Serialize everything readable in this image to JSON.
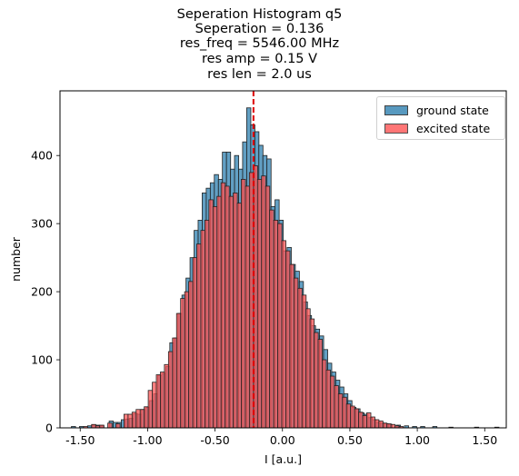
{
  "title_lines": [
    "Seperation Histogram q5",
    "Seperation = 0.136",
    "res_freq = 5546.00 MHz",
    "res amp = 0.15 V",
    "res len = 2.0 us"
  ],
  "legend": {
    "ground_label": "ground state",
    "excited_label": "excited state"
  },
  "colors": {
    "ground": "#3b88b5",
    "excited": "#ff5555",
    "overlap": "#b83240",
    "edge": "#222222",
    "threshold_line": "#dd0000"
  },
  "chart_data": {
    "type": "bar",
    "title": "Seperation Histogram q5",
    "subtitle": [
      "Seperation = 0.136",
      "res_freq = 5546.00 MHz",
      "res amp = 0.15 V",
      "res len = 2.0 us"
    ],
    "xlabel": "I [a.u.]",
    "ylabel": "number",
    "xlim": [
      -1.65,
      1.66
    ],
    "ylim": [
      0,
      495
    ],
    "x_ticks": [
      -1.5,
      -1.0,
      -0.5,
      0.0,
      0.5,
      1.0,
      1.5
    ],
    "x_tick_labels": [
      "-1.50",
      "-1.00",
      "-0.50",
      "0.00",
      "0.50",
      "1.00",
      "1.50"
    ],
    "y_ticks": [
      0,
      100,
      200,
      300,
      400
    ],
    "y_tick_labels": [
      "0",
      "100",
      "200",
      "300",
      "400"
    ],
    "threshold": -0.215,
    "legend_position": "top-right",
    "grid": false,
    "bin_width": 0.031,
    "series": [
      {
        "name": "ground state",
        "bins": [
          [
            -1.55,
            2
          ],
          [
            -1.49,
            2
          ],
          [
            -1.43,
            3
          ],
          [
            -1.4,
            4
          ],
          [
            -1.37,
            4
          ],
          [
            -1.34,
            3
          ],
          [
            -1.27,
            10
          ],
          [
            -1.24,
            8
          ],
          [
            -1.21,
            8
          ],
          [
            -1.18,
            12
          ],
          [
            -1.15,
            13
          ],
          [
            -1.12,
            14
          ],
          [
            -1.09,
            21
          ],
          [
            -1.06,
            20
          ],
          [
            -1.03,
            27
          ],
          [
            -1.0,
            30
          ],
          [
            -0.97,
            40
          ],
          [
            -0.94,
            50
          ],
          [
            -0.91,
            77
          ],
          [
            -0.88,
            80
          ],
          [
            -0.85,
            90
          ],
          [
            -0.82,
            125
          ],
          [
            -0.79,
            132
          ],
          [
            -0.76,
            168
          ],
          [
            -0.73,
            195
          ],
          [
            -0.7,
            220
          ],
          [
            -0.67,
            250
          ],
          [
            -0.64,
            290
          ],
          [
            -0.61,
            305
          ],
          [
            -0.58,
            345
          ],
          [
            -0.55,
            352
          ],
          [
            -0.52,
            360
          ],
          [
            -0.49,
            372
          ],
          [
            -0.46,
            365
          ],
          [
            -0.43,
            405
          ],
          [
            -0.4,
            405
          ],
          [
            -0.37,
            380
          ],
          [
            -0.34,
            400
          ],
          [
            -0.31,
            380
          ],
          [
            -0.28,
            420
          ],
          [
            -0.25,
            470
          ],
          [
            -0.22,
            445
          ],
          [
            -0.19,
            435
          ],
          [
            -0.16,
            415
          ],
          [
            -0.13,
            400
          ],
          [
            -0.1,
            395
          ],
          [
            -0.07,
            325
          ],
          [
            -0.04,
            335
          ],
          [
            -0.01,
            305
          ],
          [
            0.02,
            260
          ],
          [
            0.05,
            265
          ],
          [
            0.08,
            240
          ],
          [
            0.11,
            230
          ],
          [
            0.14,
            215
          ],
          [
            0.17,
            185
          ],
          [
            0.2,
            165
          ],
          [
            0.23,
            150
          ],
          [
            0.26,
            145
          ],
          [
            0.29,
            135
          ],
          [
            0.32,
            115
          ],
          [
            0.35,
            95
          ],
          [
            0.38,
            82
          ],
          [
            0.41,
            70
          ],
          [
            0.44,
            60
          ],
          [
            0.47,
            50
          ],
          [
            0.5,
            40
          ],
          [
            0.53,
            30
          ],
          [
            0.56,
            28
          ],
          [
            0.59,
            22
          ],
          [
            0.62,
            20
          ],
          [
            0.65,
            15
          ],
          [
            0.68,
            12
          ],
          [
            0.71,
            8
          ],
          [
            0.74,
            7
          ],
          [
            0.77,
            6
          ],
          [
            0.8,
            5
          ],
          [
            0.86,
            4
          ],
          [
            0.92,
            3
          ],
          [
            0.98,
            2
          ],
          [
            1.04,
            2
          ],
          [
            1.13,
            2
          ],
          [
            1.25,
            1
          ],
          [
            1.44,
            1
          ],
          [
            1.59,
            1
          ]
        ]
      },
      {
        "name": "excited state",
        "bins": [
          [
            -1.46,
            2
          ],
          [
            -1.4,
            5
          ],
          [
            -1.37,
            3
          ],
          [
            -1.34,
            4
          ],
          [
            -1.28,
            7
          ],
          [
            -1.22,
            6
          ],
          [
            -1.16,
            20
          ],
          [
            -1.13,
            20
          ],
          [
            -1.1,
            23
          ],
          [
            -1.07,
            27
          ],
          [
            -1.04,
            27
          ],
          [
            -1.01,
            31
          ],
          [
            -0.98,
            55
          ],
          [
            -0.95,
            67
          ],
          [
            -0.92,
            78
          ],
          [
            -0.89,
            82
          ],
          [
            -0.86,
            93
          ],
          [
            -0.83,
            112
          ],
          [
            -0.8,
            132
          ],
          [
            -0.77,
            168
          ],
          [
            -0.74,
            190
          ],
          [
            -0.71,
            200
          ],
          [
            -0.68,
            215
          ],
          [
            -0.65,
            250
          ],
          [
            -0.62,
            270
          ],
          [
            -0.59,
            290
          ],
          [
            -0.56,
            305
          ],
          [
            -0.53,
            335
          ],
          [
            -0.5,
            325
          ],
          [
            -0.47,
            340
          ],
          [
            -0.44,
            360
          ],
          [
            -0.41,
            355
          ],
          [
            -0.38,
            340
          ],
          [
            -0.35,
            345
          ],
          [
            -0.32,
            330
          ],
          [
            -0.29,
            365
          ],
          [
            -0.26,
            355
          ],
          [
            -0.23,
            375
          ],
          [
            -0.2,
            385
          ],
          [
            -0.17,
            365
          ],
          [
            -0.14,
            370
          ],
          [
            -0.11,
            355
          ],
          [
            -0.08,
            320
          ],
          [
            -0.05,
            305
          ],
          [
            -0.02,
            300
          ],
          [
            0.01,
            275
          ],
          [
            0.04,
            260
          ],
          [
            0.07,
            240
          ],
          [
            0.1,
            220
          ],
          [
            0.13,
            205
          ],
          [
            0.16,
            195
          ],
          [
            0.19,
            175
          ],
          [
            0.22,
            160
          ],
          [
            0.25,
            140
          ],
          [
            0.28,
            130
          ],
          [
            0.31,
            100
          ],
          [
            0.34,
            85
          ],
          [
            0.37,
            76
          ],
          [
            0.4,
            62
          ],
          [
            0.43,
            50
          ],
          [
            0.46,
            45
          ],
          [
            0.49,
            35
          ],
          [
            0.52,
            32
          ],
          [
            0.55,
            28
          ],
          [
            0.58,
            23
          ],
          [
            0.61,
            18
          ],
          [
            0.64,
            22
          ],
          [
            0.67,
            16
          ],
          [
            0.7,
            12
          ],
          [
            0.73,
            10
          ],
          [
            0.76,
            7
          ],
          [
            0.79,
            6
          ],
          [
            0.82,
            5
          ],
          [
            0.85,
            3
          ],
          [
            0.88,
            2
          ]
        ]
      }
    ]
  }
}
